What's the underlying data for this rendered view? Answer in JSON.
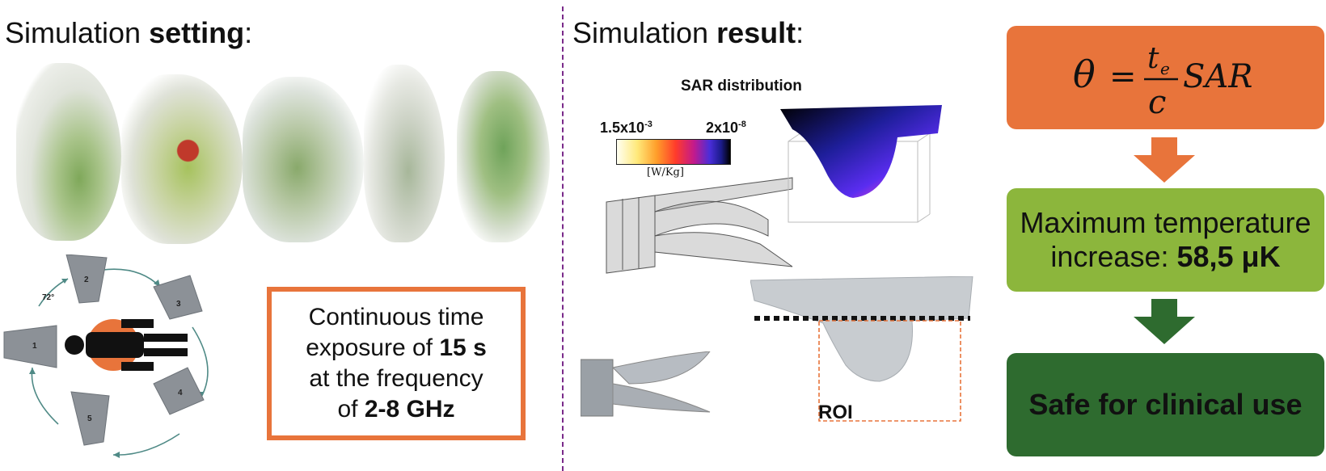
{
  "setting": {
    "heading_prefix": "Simulation ",
    "heading_bold": "setting",
    "heading_suffix": ":",
    "angle_label": "72°",
    "antenna_numbers": [
      "1",
      "2",
      "3",
      "4",
      "5"
    ],
    "exposure": {
      "line1": "Continuous time",
      "line2_prefix": "exposure of ",
      "line2_bold": "15 s",
      "line3": "at the frequency",
      "line4_prefix": "of ",
      "line4_bold": "2-8 GHz"
    }
  },
  "result": {
    "heading_prefix": "Simulation ",
    "heading_bold": "result",
    "heading_suffix": ":",
    "sar_title": "SAR distribution",
    "colorbar": {
      "min_base": "1.5x10",
      "min_exp": "-3",
      "max_base": "2x10",
      "max_exp": "-8",
      "unit": "[W/Kg]"
    },
    "roi_label": "ROI"
  },
  "flow": {
    "formula": {
      "lhs": "θ",
      "eq": "=",
      "num_base": "t",
      "num_sub": "e",
      "den": "c",
      "rhs": "SAR"
    },
    "temperature": {
      "line1": "Maximum temperature",
      "line2_prefix": "increase: ",
      "line2_bold": "58,5 μK"
    },
    "safe": "Safe for clinical use"
  },
  "colors": {
    "orange": "#e8743b",
    "light_green": "#8cb63c",
    "dark_green": "#2e6b2f",
    "divider": "#7a2a8a"
  }
}
